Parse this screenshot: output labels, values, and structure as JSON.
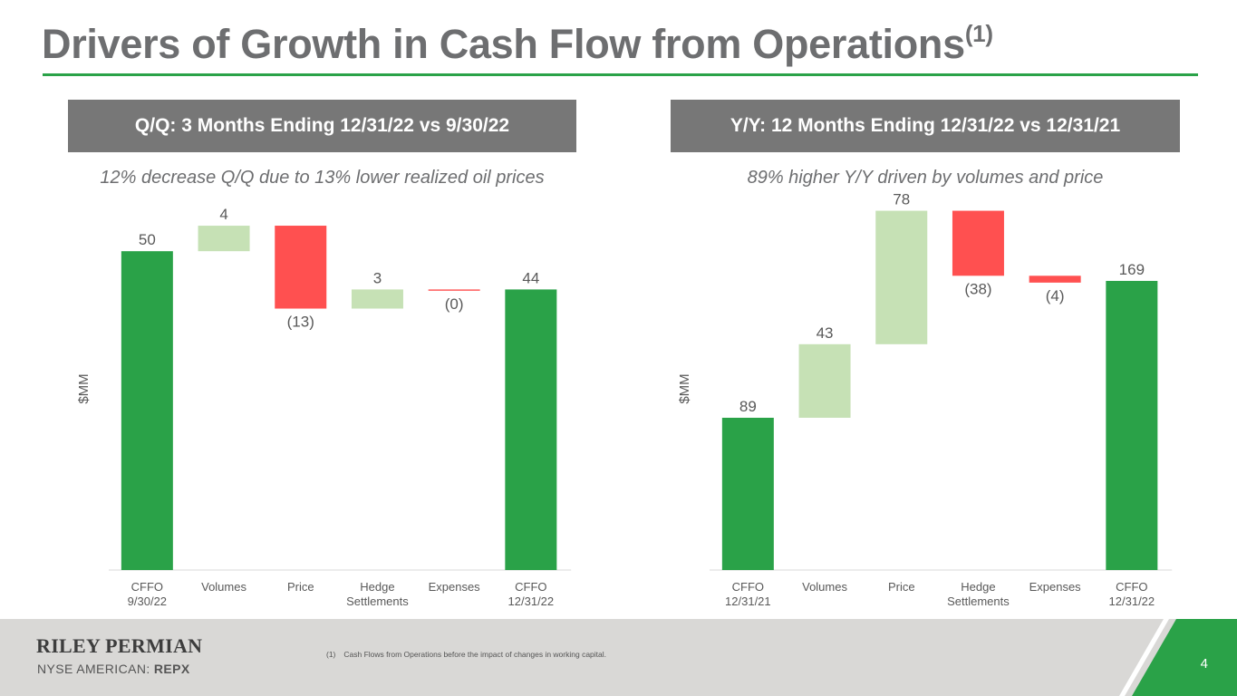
{
  "page": {
    "title": "Drivers of Growth in Cash Flow from Operations",
    "title_superscript": "(1)",
    "page_number": "4"
  },
  "colors": {
    "total": "#2aa248",
    "increase": "#c6e1b5",
    "decrease": "#ff5050",
    "header_bg": "#777777",
    "title_text": "#6d6e70",
    "rule": "#2aa248",
    "footer_bg": "#d9d8d6"
  },
  "panels": [
    {
      "header": "Q/Q: 3 Months Ending 12/31/22 vs 9/30/22",
      "subtitle": "12% decrease Q/Q due to 13% lower realized oil prices"
    },
    {
      "header": "Y/Y: 12 Months Ending 12/31/22 vs 12/31/21",
      "subtitle": "89% higher Y/Y driven by volumes and price"
    }
  ],
  "chart_data": [
    {
      "type": "waterfall",
      "title": "Q/Q: 3 Months Ending 12/31/22 vs 9/30/22",
      "ylabel": "$MM",
      "categories": [
        [
          "CFFO",
          "9/30/22"
        ],
        [
          "Volumes"
        ],
        [
          "Price"
        ],
        [
          "Hedge",
          "Settlements"
        ],
        [
          "Expenses"
        ],
        [
          "CFFO",
          "12/31/22"
        ]
      ],
      "values": [
        50,
        4,
        -13,
        3,
        -0.2,
        44
      ],
      "kinds": [
        "total",
        "increase",
        "decrease",
        "increase",
        "decrease",
        "total"
      ],
      "labels": [
        "50",
        "4",
        "(13)",
        "3",
        "(0)",
        "44"
      ],
      "ylim": [
        0,
        55
      ]
    },
    {
      "type": "waterfall",
      "title": "Y/Y: 12 Months Ending 12/31/22 vs 12/31/21",
      "ylabel": "$MM",
      "categories": [
        [
          "CFFO",
          "12/31/21"
        ],
        [
          "Volumes"
        ],
        [
          "Price"
        ],
        [
          "Hedge",
          "Settlements"
        ],
        [
          "Expenses"
        ],
        [
          "CFFO",
          "12/31/22"
        ]
      ],
      "values": [
        89,
        43,
        78,
        -38,
        -4,
        169
      ],
      "kinds": [
        "total",
        "increase",
        "increase",
        "decrease",
        "decrease",
        "total"
      ],
      "labels": [
        "89",
        "43",
        "78",
        "(38)",
        "(4)",
        "169"
      ],
      "ylim": [
        0,
        205
      ]
    }
  ],
  "footer": {
    "company": "RILEY PERMIAN",
    "exchange": "NYSE AMERICAN: ",
    "ticker": "REPX",
    "footnote_marker": "(1)",
    "footnote_text": "Cash Flows from Operations before the impact of changes in working capital."
  }
}
